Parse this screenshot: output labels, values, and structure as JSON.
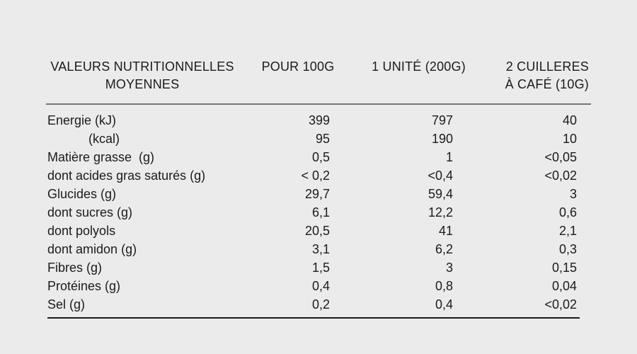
{
  "page": {
    "background": "#ebebeb",
    "text_color": "#1b1b1b",
    "header_rule_color": "#757575",
    "bottom_rule_color": "#1a1a1a"
  },
  "table": {
    "header": {
      "col1": [
        "VALEURS NUTRITIONNELLES",
        "MOYENNES"
      ],
      "col2": "POUR 100G",
      "col3": "1 UNITÉ (200G)",
      "col4": [
        "2 CUILLERES",
        "À CAFÉ (10G)"
      ]
    },
    "rows": [
      {
        "label": "Energie (kJ)",
        "per_100g": "399",
        "per_unit_200g": "797",
        "per_2_spoons_10g": "40",
        "indent": false
      },
      {
        "label": "(kcal)",
        "per_100g": "95",
        "per_unit_200g": "190",
        "per_2_spoons_10g": "10",
        "indent": true
      },
      {
        "label": "Matière grasse  (g)",
        "per_100g": "0,5",
        "per_unit_200g": "1",
        "per_2_spoons_10g": "<0,05",
        "indent": false
      },
      {
        "label": "dont acides gras saturés (g)",
        "per_100g": "< 0,2",
        "per_unit_200g": "<0,4",
        "per_2_spoons_10g": "<0,02",
        "indent": false
      },
      {
        "label": "Glucides (g)",
        "per_100g": "29,7",
        "per_unit_200g": "59,4",
        "per_2_spoons_10g": "3",
        "indent": false
      },
      {
        "label": "dont sucres (g)",
        "per_100g": "6,1",
        "per_unit_200g": "12,2",
        "per_2_spoons_10g": "0,6",
        "indent": false
      },
      {
        "label": "dont polyols",
        "per_100g": "20,5",
        "per_unit_200g": "41",
        "per_2_spoons_10g": "2,1",
        "indent": false
      },
      {
        "label": "dont amidon (g)",
        "per_100g": "3,1",
        "per_unit_200g": "6,2",
        "per_2_spoons_10g": "0,3",
        "indent": false
      },
      {
        "label": "Fibres (g)",
        "per_100g": "1,5",
        "per_unit_200g": "3",
        "per_2_spoons_10g": "0,15",
        "indent": false
      },
      {
        "label": "Protéines (g)",
        "per_100g": "0,4",
        "per_unit_200g": "0,8",
        "per_2_spoons_10g": "0,04",
        "indent": false
      },
      {
        "label": "Sel (g)",
        "per_100g": "0,2",
        "per_unit_200g": "0,4",
        "per_2_spoons_10g": "<0,02",
        "indent": false
      }
    ]
  },
  "chart_data": {
    "type": "table",
    "title": "VALEURS NUTRITIONNELLES MOYENNES",
    "columns": [
      "VALEURS NUTRITIONNELLES MOYENNES",
      "POUR 100G",
      "1 UNITÉ (200G)",
      "2 CUILLERES À CAFÉ (10G)"
    ],
    "rows": [
      [
        "Energie (kJ)",
        "399",
        "797",
        "40"
      ],
      [
        "(kcal)",
        "95",
        "190",
        "10"
      ],
      [
        "Matière grasse (g)",
        "0,5",
        "1",
        "<0,05"
      ],
      [
        "dont acides gras saturés (g)",
        "< 0,2",
        "<0,4",
        "<0,02"
      ],
      [
        "Glucides (g)",
        "29,7",
        "59,4",
        "3"
      ],
      [
        "dont sucres (g)",
        "6,1",
        "12,2",
        "0,6"
      ],
      [
        "dont polyols",
        "20,5",
        "41",
        "2,1"
      ],
      [
        "dont amidon (g)",
        "3,1",
        "6,2",
        "0,3"
      ],
      [
        "Fibres (g)",
        "1,5",
        "3",
        "0,15"
      ],
      [
        "Protéines (g)",
        "0,4",
        "0,8",
        "0,04"
      ],
      [
        "Sel (g)",
        "0,2",
        "0,4",
        "<0,02"
      ]
    ]
  }
}
